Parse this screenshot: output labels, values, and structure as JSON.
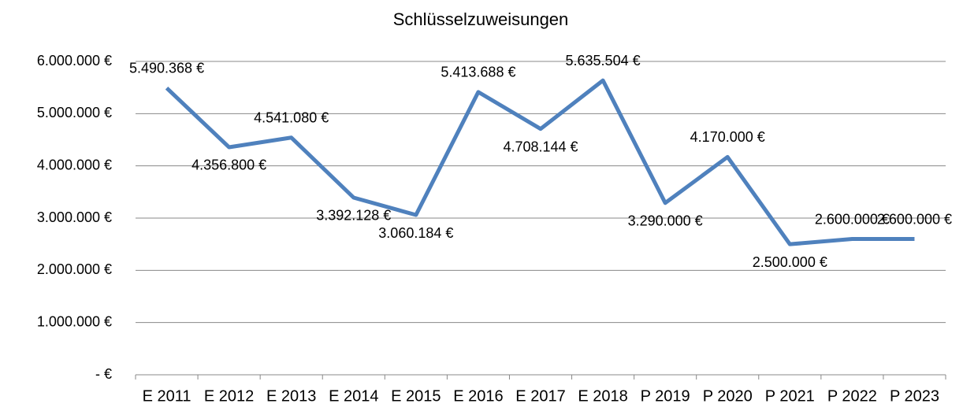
{
  "chart_data": {
    "type": "line",
    "title": "Schlüsselzuweisungen",
    "categories": [
      "E 2011",
      "E 2012",
      "E 2013",
      "E 2014",
      "E 2015",
      "E 2016",
      "E 2017",
      "E 2018",
      "P 2019",
      "P 2020",
      "P 2021",
      "P 2022",
      "P 2023"
    ],
    "series": [
      {
        "name": "Schlüsselzuweisungen",
        "color": "#4f81bd",
        "values": [
          5490368,
          4356800,
          4541080,
          3392128,
          3060184,
          5413688,
          4708144,
          5635504,
          3290000,
          4170000,
          2500000,
          2600000,
          2600000
        ],
        "value_labels": [
          "5.490.368 €",
          "4.356.800 €",
          "4.541.080 €",
          "3.392.128 €",
          "3.060.184 €",
          "5.413.688 €",
          "4.708.144 €",
          "5.635.504 €",
          "3.290.000 €",
          "4.170.000 €",
          "2.500.000 €",
          "2.600.000 €",
          "2.600.000 €"
        ]
      }
    ],
    "ylim": [
      0,
      6000000
    ],
    "yticks": [
      {
        "value": 0,
        "label": "-   €"
      },
      {
        "value": 1000000,
        "label": "1.000.000 €"
      },
      {
        "value": 2000000,
        "label": "2.000.000 €"
      },
      {
        "value": 3000000,
        "label": "3.000.000 €"
      },
      {
        "value": 4000000,
        "label": "4.000.000 €"
      },
      {
        "value": 5000000,
        "label": "5.000.000 €"
      },
      {
        "value": 6000000,
        "label": "6.000.000 €"
      }
    ],
    "grid": true
  }
}
